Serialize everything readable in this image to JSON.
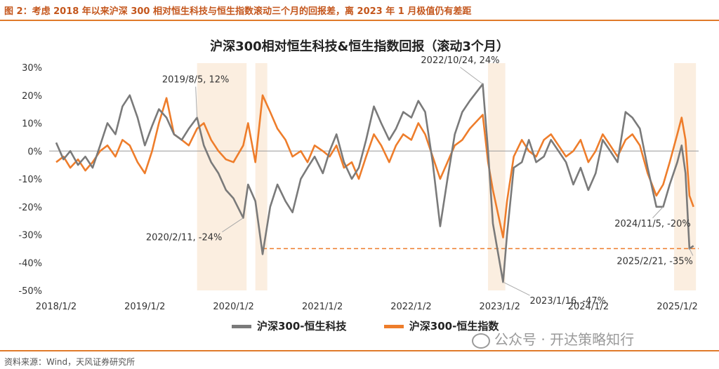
{
  "figure_header": "图 2：考虑 2018 年以来沪深 300 相对恒生科技与恒生指数滚动三个月的回报差，离 2023 年 1 月极值仍有差距",
  "source": "资料来源：Wind，天风证券研究所",
  "watermark": "公众号 · 开达策略知行",
  "chart_data": {
    "type": "line",
    "title": "沪深300相对恒生科技&恒生指数回报（滚动3个月）",
    "x_tick_labels": [
      "2018/1/2",
      "2019/1/2",
      "2020/1/2",
      "2021/1/2",
      "2022/1/2",
      "2023/1/2",
      "2024/1/2",
      "2025/1/2"
    ],
    "y_tick_labels": [
      "30%",
      "20%",
      "10%",
      "0%",
      "-10%",
      "-20%",
      "-30%",
      "-40%",
      "-50%"
    ],
    "ylim": [
      -50,
      30
    ],
    "xlim": [
      "2018/1/2",
      "2025/3/31"
    ],
    "legend_position": "bottom",
    "colors": {
      "hstech": "#7a7a7a",
      "hsi": "#ee7d2b",
      "band": "#fbeee0",
      "ref": "#ee7d2b",
      "axis": "#999999"
    },
    "series": [
      {
        "name": "沪深300-恒生科技",
        "key": "hstech",
        "points": [
          [
            "2018-01-02",
            3
          ],
          [
            "2018-02-01",
            -3
          ],
          [
            "2018-03-01",
            0
          ],
          [
            "2018-04-02",
            -5
          ],
          [
            "2018-05-02",
            -2
          ],
          [
            "2018-06-01",
            -6
          ],
          [
            "2018-07-02",
            2
          ],
          [
            "2018-08-01",
            10
          ],
          [
            "2018-09-03",
            6
          ],
          [
            "2018-10-02",
            16
          ],
          [
            "2018-11-01",
            20
          ],
          [
            "2018-12-03",
            12
          ],
          [
            "2019-01-02",
            2
          ],
          [
            "2019-02-01",
            9
          ],
          [
            "2019-03-01",
            15
          ],
          [
            "2019-04-01",
            12
          ],
          [
            "2019-05-02",
            6
          ],
          [
            "2019-06-03",
            4
          ],
          [
            "2019-07-02",
            8
          ],
          [
            "2019-08-05",
            12
          ],
          [
            "2019-09-02",
            2
          ],
          [
            "2019-10-02",
            -4
          ],
          [
            "2019-11-01",
            -8
          ],
          [
            "2019-12-02",
            -14
          ],
          [
            "2020-01-02",
            -17
          ],
          [
            "2020-02-11",
            -24
          ],
          [
            "2020-03-02",
            -12
          ],
          [
            "2020-04-01",
            -18
          ],
          [
            "2020-05-01",
            -37
          ],
          [
            "2020-06-01",
            -20
          ],
          [
            "2020-07-01",
            -12
          ],
          [
            "2020-08-03",
            -18
          ],
          [
            "2020-09-01",
            -22
          ],
          [
            "2020-10-05",
            -10
          ],
          [
            "2020-11-02",
            -6
          ],
          [
            "2020-12-01",
            -2
          ],
          [
            "2021-01-04",
            -8
          ],
          [
            "2021-02-01",
            0
          ],
          [
            "2021-03-01",
            6
          ],
          [
            "2021-04-01",
            -4
          ],
          [
            "2021-05-03",
            -10
          ],
          [
            "2021-06-01",
            -6
          ],
          [
            "2021-07-01",
            4
          ],
          [
            "2021-08-02",
            16
          ],
          [
            "2021-09-01",
            10
          ],
          [
            "2021-10-04",
            4
          ],
          [
            "2021-11-01",
            8
          ],
          [
            "2021-12-01",
            14
          ],
          [
            "2022-01-03",
            12
          ],
          [
            "2022-02-01",
            18
          ],
          [
            "2022-03-01",
            14
          ],
          [
            "2022-04-01",
            -4
          ],
          [
            "2022-05-02",
            -27
          ],
          [
            "2022-06-01",
            -10
          ],
          [
            "2022-07-01",
            6
          ],
          [
            "2022-08-01",
            14
          ],
          [
            "2022-09-01",
            18
          ],
          [
            "2022-10-24",
            24
          ],
          [
            "2022-11-15",
            0
          ],
          [
            "2022-12-05",
            -26
          ],
          [
            "2023-01-16",
            -47
          ],
          [
            "2023-02-01",
            -30
          ],
          [
            "2023-03-01",
            -6
          ],
          [
            "2023-04-03",
            -4
          ],
          [
            "2023-05-02",
            4
          ],
          [
            "2023-06-01",
            -4
          ],
          [
            "2023-07-03",
            -2
          ],
          [
            "2023-08-01",
            4
          ],
          [
            "2023-09-01",
            0
          ],
          [
            "2023-10-02",
            -4
          ],
          [
            "2023-11-01",
            -12
          ],
          [
            "2023-12-01",
            -6
          ],
          [
            "2024-01-02",
            -14
          ],
          [
            "2024-02-01",
            -8
          ],
          [
            "2024-03-01",
            4
          ],
          [
            "2024-04-01",
            0
          ],
          [
            "2024-05-01",
            -4
          ],
          [
            "2024-06-03",
            14
          ],
          [
            "2024-07-01",
            12
          ],
          [
            "2024-08-01",
            8
          ],
          [
            "2024-09-02",
            -6
          ],
          [
            "2024-10-08",
            -20
          ],
          [
            "2024-11-05",
            -20
          ],
          [
            "2024-12-02",
            -12
          ],
          [
            "2025-01-02",
            -4
          ],
          [
            "2025-01-20",
            2
          ],
          [
            "2025-02-05",
            -8
          ],
          [
            "2025-02-21",
            -35
          ],
          [
            "2025-03-10",
            -34
          ]
        ]
      },
      {
        "name": "沪深300-恒生指数",
        "key": "hsi",
        "points": [
          [
            "2018-01-02",
            -4
          ],
          [
            "2018-02-01",
            -2
          ],
          [
            "2018-03-01",
            -6
          ],
          [
            "2018-04-02",
            -3
          ],
          [
            "2018-05-02",
            -7
          ],
          [
            "2018-06-01",
            -4
          ],
          [
            "2018-07-02",
            0
          ],
          [
            "2018-08-01",
            2
          ],
          [
            "2018-09-03",
            -2
          ],
          [
            "2018-10-02",
            4
          ],
          [
            "2018-11-01",
            2
          ],
          [
            "2018-12-03",
            -4
          ],
          [
            "2019-01-02",
            -8
          ],
          [
            "2019-02-01",
            0
          ],
          [
            "2019-03-01",
            10
          ],
          [
            "2019-04-01",
            19
          ],
          [
            "2019-05-02",
            6
          ],
          [
            "2019-06-03",
            4
          ],
          [
            "2019-07-02",
            2
          ],
          [
            "2019-08-05",
            8
          ],
          [
            "2019-09-02",
            10
          ],
          [
            "2019-10-02",
            4
          ],
          [
            "2019-11-01",
            0
          ],
          [
            "2019-12-02",
            -3
          ],
          [
            "2020-01-02",
            -4
          ],
          [
            "2020-02-11",
            2
          ],
          [
            "2020-03-02",
            10
          ],
          [
            "2020-04-01",
            -4
          ],
          [
            "2020-05-01",
            20
          ],
          [
            "2020-06-01",
            14
          ],
          [
            "2020-07-01",
            8
          ],
          [
            "2020-08-03",
            4
          ],
          [
            "2020-09-01",
            -2
          ],
          [
            "2020-10-05",
            0
          ],
          [
            "2020-11-02",
            -4
          ],
          [
            "2020-12-01",
            2
          ],
          [
            "2021-01-04",
            0
          ],
          [
            "2021-02-01",
            -2
          ],
          [
            "2021-03-01",
            2
          ],
          [
            "2021-04-01",
            -6
          ],
          [
            "2021-05-03",
            -4
          ],
          [
            "2021-06-01",
            -10
          ],
          [
            "2021-07-01",
            -2
          ],
          [
            "2021-08-02",
            6
          ],
          [
            "2021-09-01",
            2
          ],
          [
            "2021-10-04",
            -4
          ],
          [
            "2021-11-01",
            2
          ],
          [
            "2021-12-01",
            6
          ],
          [
            "2022-01-03",
            4
          ],
          [
            "2022-02-01",
            10
          ],
          [
            "2022-03-01",
            6
          ],
          [
            "2022-04-01",
            -2
          ],
          [
            "2022-05-02",
            -10
          ],
          [
            "2022-06-01",
            -4
          ],
          [
            "2022-07-01",
            2
          ],
          [
            "2022-08-01",
            4
          ],
          [
            "2022-09-01",
            8
          ],
          [
            "2022-10-24",
            13
          ],
          [
            "2022-11-15",
            -4
          ],
          [
            "2022-12-05",
            -14
          ],
          [
            "2023-01-16",
            -31
          ],
          [
            "2023-02-01",
            -18
          ],
          [
            "2023-03-01",
            -2
          ],
          [
            "2023-04-03",
            4
          ],
          [
            "2023-05-02",
            0
          ],
          [
            "2023-06-01",
            -2
          ],
          [
            "2023-07-03",
            4
          ],
          [
            "2023-08-01",
            6
          ],
          [
            "2023-09-01",
            2
          ],
          [
            "2023-10-02",
            -2
          ],
          [
            "2023-11-01",
            0
          ],
          [
            "2023-12-01",
            4
          ],
          [
            "2024-01-02",
            -4
          ],
          [
            "2024-02-01",
            0
          ],
          [
            "2024-03-01",
            6
          ],
          [
            "2024-04-01",
            2
          ],
          [
            "2024-05-01",
            -2
          ],
          [
            "2024-06-03",
            4
          ],
          [
            "2024-07-01",
            6
          ],
          [
            "2024-08-01",
            2
          ],
          [
            "2024-09-02",
            -8
          ],
          [
            "2024-10-08",
            -16
          ],
          [
            "2024-11-05",
            -12
          ],
          [
            "2024-12-02",
            -4
          ],
          [
            "2025-01-02",
            6
          ],
          [
            "2025-01-20",
            12
          ],
          [
            "2025-02-05",
            4
          ],
          [
            "2025-02-21",
            -16
          ],
          [
            "2025-03-10",
            -20
          ]
        ]
      }
    ],
    "shaded_periods": [
      [
        "2019-08-05",
        "2020-02-25"
      ],
      [
        "2020-04-01",
        "2020-05-20"
      ],
      [
        "2022-11-15",
        "2023-01-25"
      ],
      [
        "2024-12-20",
        "2025-03-20"
      ]
    ],
    "reference_line": {
      "y": -35,
      "from": "2020-05-01",
      "to": "2025-03-31"
    },
    "annotations": [
      {
        "text": "2019/8/5, 12%",
        "point": [
          "2019-08-05",
          12
        ]
      },
      {
        "text": "2020/2/11, -24%",
        "point": [
          "2020-02-11",
          -24
        ]
      },
      {
        "text": "2022/10/24, 24%",
        "point": [
          "2022-10-24",
          24
        ]
      },
      {
        "text": "2023/1/16, -47%",
        "point": [
          "2023-01-16",
          -47
        ]
      },
      {
        "text": "2024/11/5, -20%",
        "point": [
          "2024-11-05",
          -20
        ]
      },
      {
        "text": "2025/2/21, -35%",
        "point": [
          "2025-02-21",
          -35
        ]
      }
    ]
  }
}
